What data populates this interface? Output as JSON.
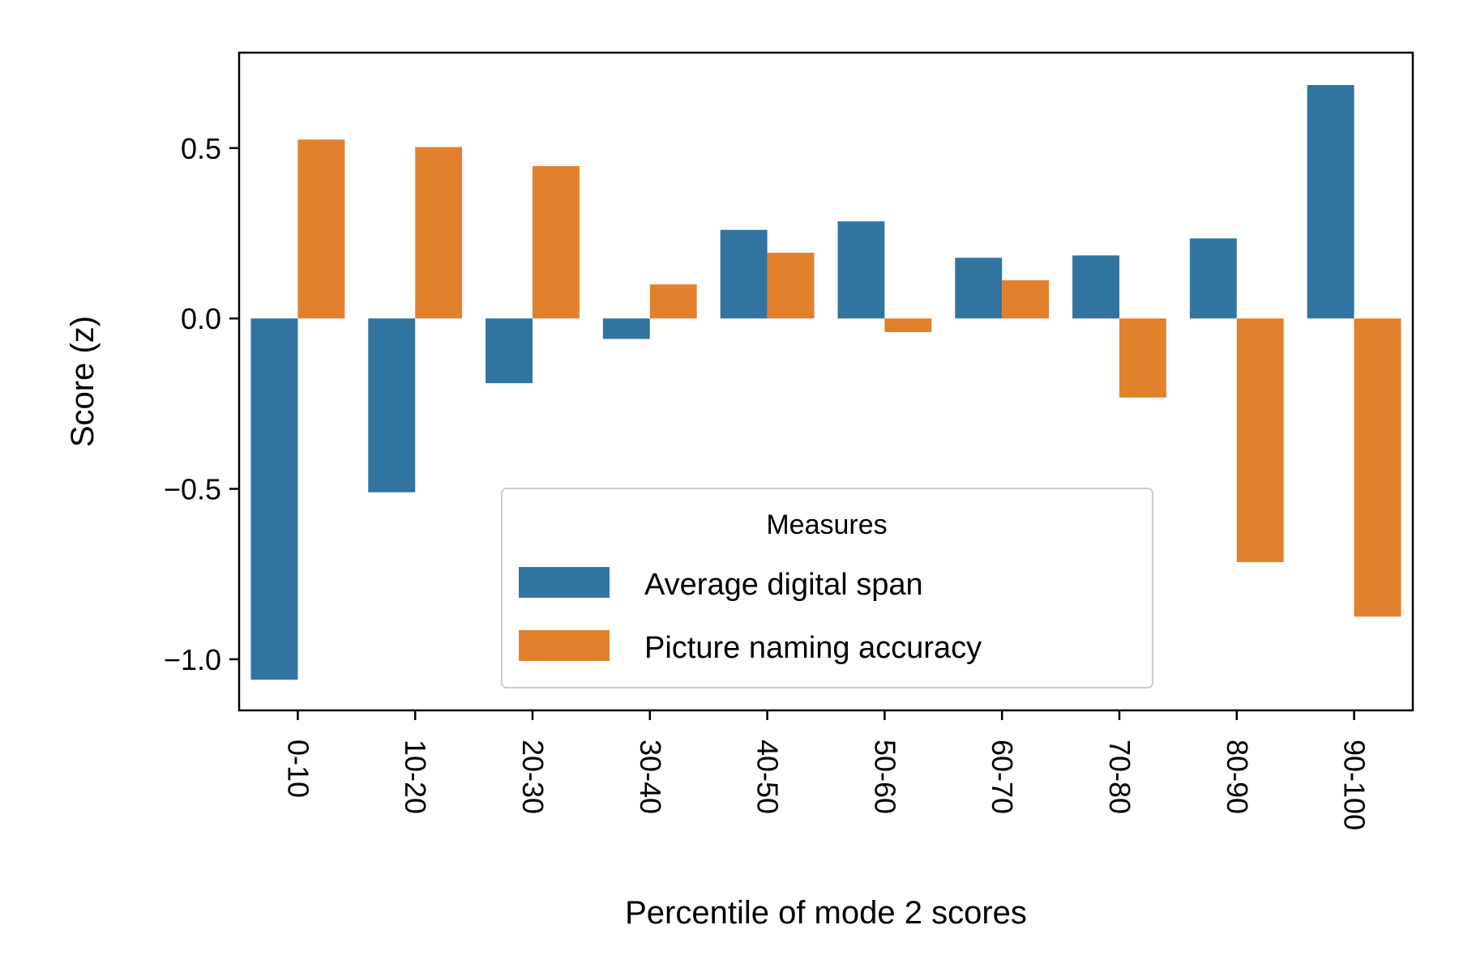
{
  "chart_data": {
    "type": "bar",
    "title": "",
    "xlabel": "Percentile of mode 2 scores",
    "ylabel": "Score (z)",
    "categories": [
      "0-10",
      "10-20",
      "20-30",
      "30-40",
      "40-50",
      "50-60",
      "60-70",
      "70-80",
      "80-90",
      "90-100"
    ],
    "series": [
      {
        "name": "Average digital span",
        "color": "#3274a1",
        "values": [
          -1.06,
          -0.51,
          -0.19,
          -0.06,
          0.26,
          0.285,
          0.178,
          0.185,
          0.235,
          0.685
        ]
      },
      {
        "name": "Picture naming accuracy",
        "color": "#e1812c",
        "values": [
          0.525,
          0.503,
          0.447,
          0.1,
          0.193,
          -0.04,
          0.112,
          -0.232,
          -0.715,
          -0.875
        ]
      }
    ],
    "ylim": [
      -1.15,
      0.78
    ],
    "yticks": [
      -1.0,
      -0.5,
      0.0,
      0.5
    ],
    "ytick_labels": [
      "−1.0",
      "−0.5",
      "0.0",
      "0.5"
    ],
    "legend": {
      "title": "Measures",
      "position": "lower-center"
    },
    "grid": false
  }
}
